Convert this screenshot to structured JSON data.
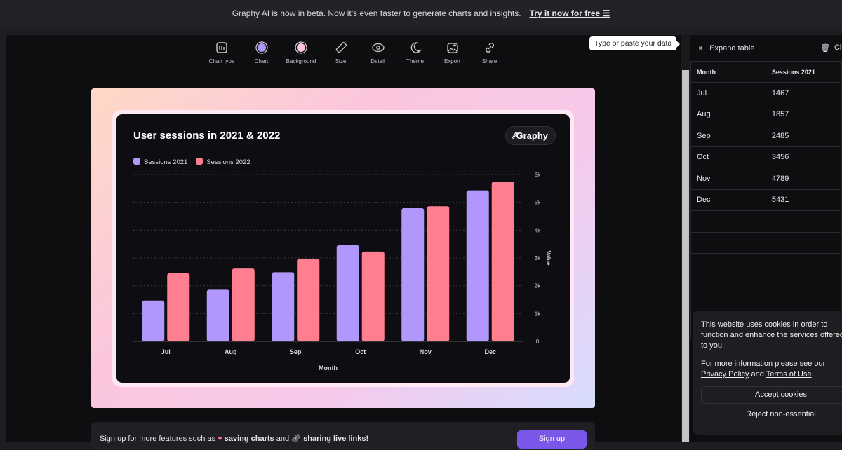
{
  "banner": {
    "text": "Graphy AI is now in beta. Now it's even faster to generate charts and insights.",
    "link": "Try it now for free ☰"
  },
  "toolbar": [
    {
      "label": "Chart type",
      "icon": "bar-chart-icon"
    },
    {
      "label": "Chart",
      "icon": "chart-color-swatch-icon"
    },
    {
      "label": "Background",
      "icon": "background-swatch-icon"
    },
    {
      "label": "Size",
      "icon": "ruler-icon"
    },
    {
      "label": "Detail",
      "icon": "eye-icon"
    },
    {
      "label": "Theme",
      "icon": "moon-icon"
    },
    {
      "label": "Export",
      "icon": "image-download-icon"
    },
    {
      "label": "Share",
      "icon": "link-icon"
    }
  ],
  "colors": {
    "s2021": "#b197fc",
    "s2022": "#ff7f91",
    "accent": "#7a57e8"
  },
  "chart_data": {
    "type": "bar",
    "title": "User sessions in 2021 & 2022",
    "brand": "Graphy",
    "categories": [
      "Jul",
      "Aug",
      "Sep",
      "Oct",
      "Nov",
      "Dec"
    ],
    "series": [
      {
        "name": "Sessions 2021",
        "values": [
          1467,
          1857,
          2485,
          3456,
          4789,
          5431
        ]
      },
      {
        "name": "Sessions 2022",
        "values": [
          2450,
          2620,
          2970,
          3230,
          4860,
          5740
        ]
      }
    ],
    "xlabel": "Month",
    "ylabel": "Value",
    "ylim": [
      0,
      6000
    ],
    "yticks": [
      "0",
      "1k",
      "2k",
      "3k",
      "4k",
      "5k",
      "6k"
    ],
    "ytick_values": [
      0,
      1000,
      2000,
      3000,
      4000,
      5000,
      6000
    ],
    "grid": true,
    "legend": "top-left",
    "yaxis_side": "right"
  },
  "signup": {
    "pre": "Sign up for more features such as",
    "f1": "saving charts",
    "mid": "and",
    "f2": "sharing live links!",
    "button": "Sign up"
  },
  "side": {
    "tooltip": "Type or paste your data",
    "expand": "Expand table",
    "clear": "Cle",
    "headers": [
      "Month",
      "Sessions 2021"
    ],
    "rows": [
      [
        "Jul",
        "1467"
      ],
      [
        "Aug",
        "1857"
      ],
      [
        "Sep",
        "2485"
      ],
      [
        "Oct",
        "3456"
      ],
      [
        "Nov",
        "4789"
      ],
      [
        "Dec",
        "5431"
      ]
    ]
  },
  "cookie": {
    "text": "This website uses cookies in order to function and enhance the services offered to you.",
    "more": "For more information please see our",
    "privacy": "Privacy Policy",
    "and": "and",
    "terms": "Terms of Use",
    "accept": "Accept cookies",
    "reject": "Reject non-essential"
  }
}
